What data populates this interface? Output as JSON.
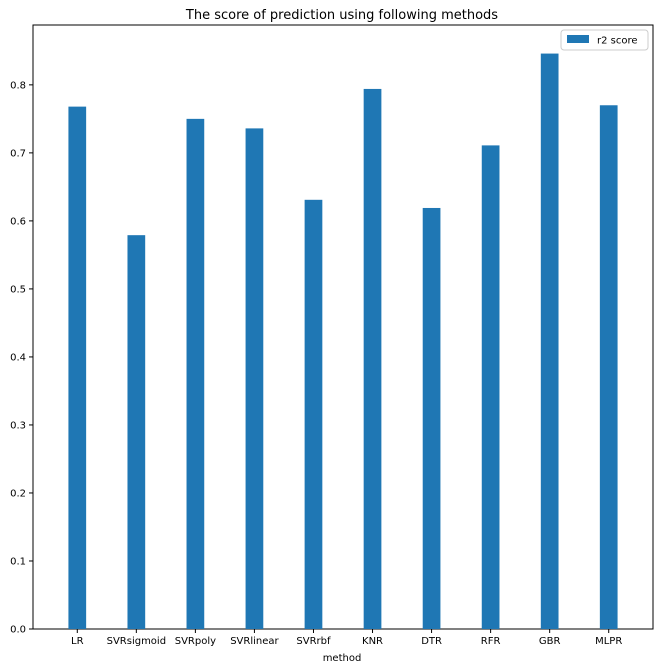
{
  "chart_data": {
    "type": "bar",
    "title": "The score of prediction using following methods",
    "xlabel": "method",
    "ylabel": "",
    "categories": [
      "LR",
      "SVRsigmoid",
      "SVRpoly",
      "SVRlinear",
      "SVRrbf",
      "KNR",
      "DTR",
      "RFR",
      "GBR",
      "MLPR"
    ],
    "series": [
      {
        "name": "r2 score",
        "color": "#1f77b4",
        "values": [
          0.768,
          0.579,
          0.75,
          0.736,
          0.631,
          0.794,
          0.619,
          0.711,
          0.846,
          0.77
        ]
      }
    ],
    "ylim": [
      0,
      0.888
    ],
    "yticks": [
      "0.0",
      "0.1",
      "0.2",
      "0.3",
      "0.4",
      "0.5",
      "0.6",
      "0.7",
      "0.8"
    ],
    "grid": false,
    "legend": "top-right"
  }
}
